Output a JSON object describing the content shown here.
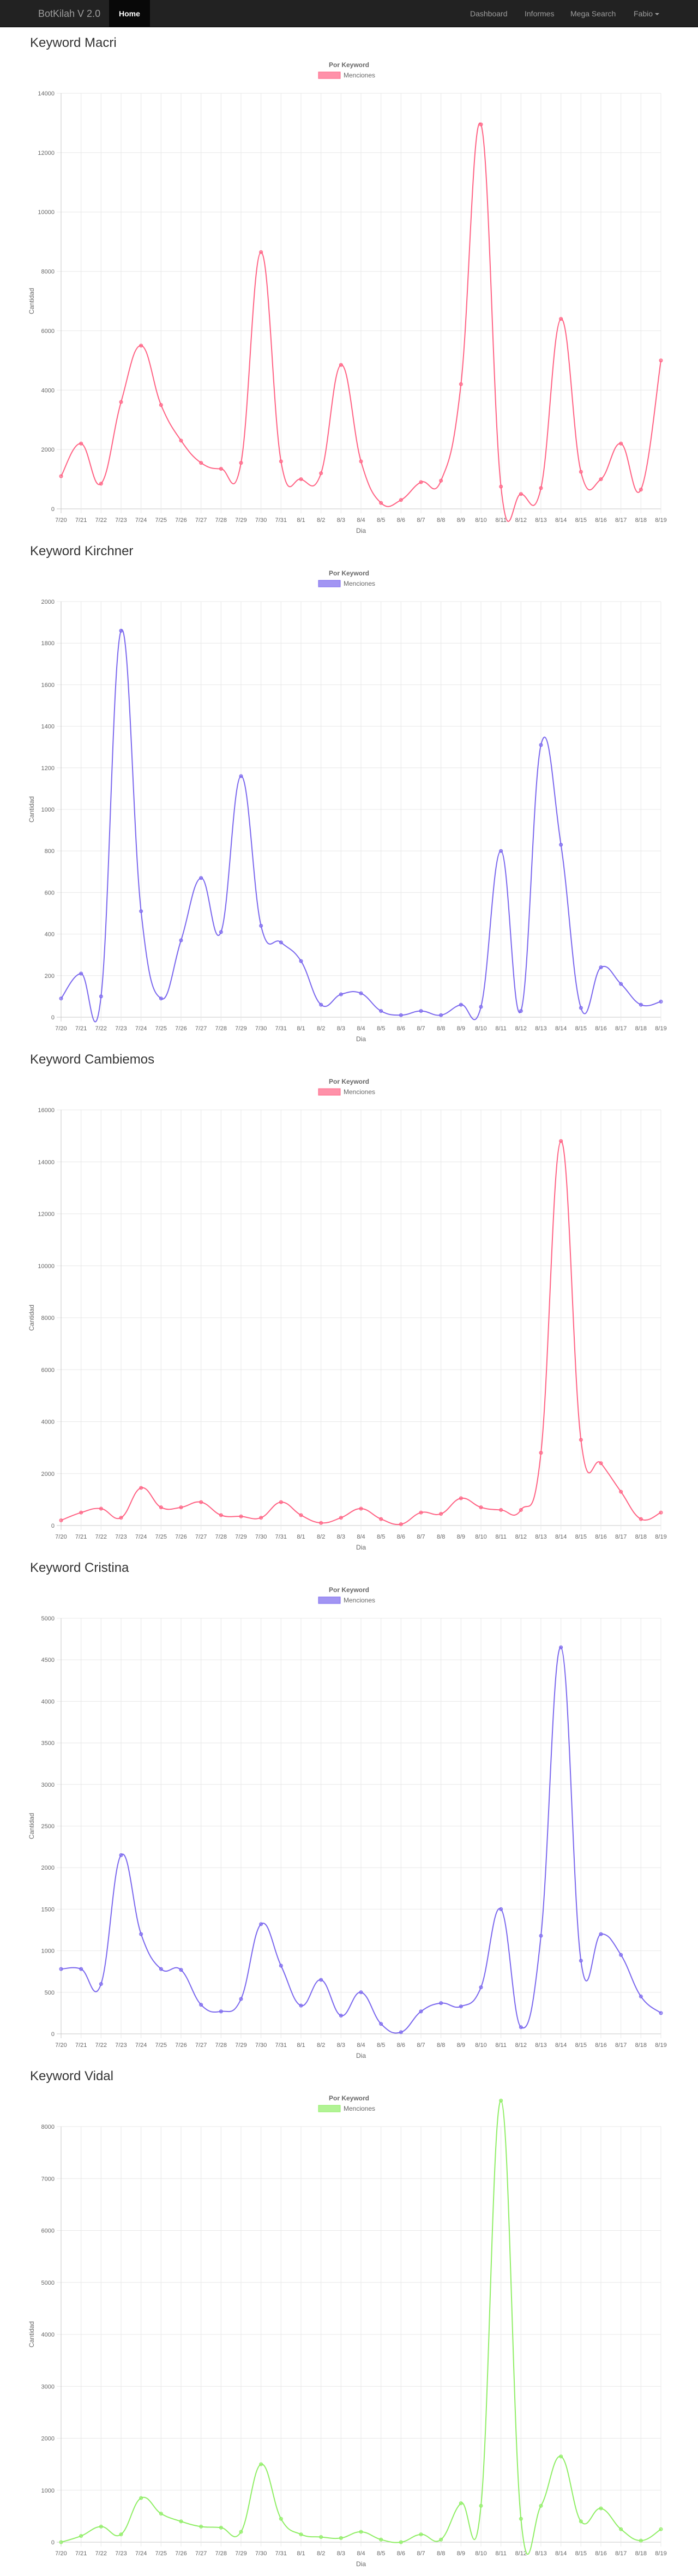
{
  "navbar": {
    "brand": "BotKilah V 2.0",
    "home": "Home",
    "links": [
      "Dashboard",
      "Informes",
      "Mega Search"
    ],
    "user": "Fabio"
  },
  "sections": [
    {
      "title": "Keyword Macri"
    },
    {
      "title": "Keyword Kirchner"
    },
    {
      "title": "Keyword Cambiemos"
    },
    {
      "title": "Keyword Cristina"
    },
    {
      "title": "Keyword Vidal"
    }
  ],
  "chart_data": [
    {
      "type": "line",
      "title": "Por Keyword",
      "xlabel": "Dia",
      "ylabel": "Cantidad",
      "ylim": [
        0,
        14000
      ],
      "yticks": [
        0,
        2000,
        4000,
        6000,
        8000,
        10000,
        12000,
        14000
      ],
      "legend_position": "top",
      "categories": [
        "7/20",
        "7/21",
        "7/22",
        "7/23",
        "7/24",
        "7/25",
        "7/26",
        "7/27",
        "7/28",
        "7/29",
        "7/30",
        "7/31",
        "8/1",
        "8/2",
        "8/3",
        "8/4",
        "8/5",
        "8/6",
        "8/7",
        "8/8",
        "8/9",
        "8/10",
        "8/11",
        "8/12",
        "8/13",
        "8/14",
        "8/15",
        "8/16",
        "8/17",
        "8/18",
        "8/19"
      ],
      "series": [
        {
          "name": "Menciones",
          "color": "#ff6384",
          "values": [
            1100,
            2200,
            850,
            3600,
            5500,
            3500,
            2300,
            1550,
            1350,
            1550,
            8650,
            1600,
            1000,
            1200,
            4850,
            1600,
            200,
            300,
            900,
            950,
            4200,
            12950,
            750,
            500,
            700,
            6400,
            1250,
            1000,
            2200,
            650,
            5000
          ]
        }
      ]
    },
    {
      "type": "line",
      "title": "Por Keyword",
      "xlabel": "Dia",
      "ylabel": "Cantidad",
      "ylim": [
        0,
        2000
      ],
      "yticks": [
        0,
        200,
        400,
        600,
        800,
        1000,
        1200,
        1400,
        1600,
        1800,
        2000
      ],
      "legend_position": "top",
      "categories": [
        "7/20",
        "7/21",
        "7/22",
        "7/23",
        "7/24",
        "7/25",
        "7/26",
        "7/27",
        "7/28",
        "7/29",
        "7/30",
        "7/31",
        "8/1",
        "8/2",
        "8/3",
        "8/4",
        "8/5",
        "8/6",
        "8/7",
        "8/8",
        "8/9",
        "8/10",
        "8/11",
        "8/12",
        "8/13",
        "8/14",
        "8/15",
        "8/16",
        "8/17",
        "8/18",
        "8/19"
      ],
      "series": [
        {
          "name": "Menciones",
          "color": "#7b68ee",
          "values": [
            90,
            210,
            100,
            1860,
            510,
            90,
            370,
            670,
            410,
            1160,
            440,
            360,
            270,
            60,
            110,
            115,
            30,
            10,
            30,
            10,
            60,
            50,
            800,
            30,
            1310,
            830,
            45,
            240,
            160,
            60,
            75
          ]
        }
      ]
    },
    {
      "type": "line",
      "title": "Por Keyword",
      "xlabel": "Dia",
      "ylabel": "Cantidad",
      "ylim": [
        0,
        16000
      ],
      "yticks": [
        0,
        2000,
        4000,
        6000,
        8000,
        10000,
        12000,
        14000,
        16000
      ],
      "legend_position": "top",
      "categories": [
        "7/20",
        "7/21",
        "7/22",
        "7/23",
        "7/24",
        "7/25",
        "7/26",
        "7/27",
        "7/28",
        "7/29",
        "7/30",
        "7/31",
        "8/1",
        "8/2",
        "8/3",
        "8/4",
        "8/5",
        "8/6",
        "8/7",
        "8/8",
        "8/9",
        "8/10",
        "8/11",
        "8/12",
        "8/13",
        "8/14",
        "8/15",
        "8/16",
        "8/17",
        "8/18",
        "8/19"
      ],
      "series": [
        {
          "name": "Menciones",
          "color": "#ff6384",
          "values": [
            200,
            500,
            650,
            300,
            1450,
            700,
            700,
            900,
            400,
            350,
            300,
            900,
            400,
            100,
            300,
            650,
            250,
            50,
            500,
            450,
            1050,
            700,
            600,
            600,
            2800,
            14800,
            3300,
            2400,
            1300,
            250,
            500
          ]
        }
      ]
    },
    {
      "type": "line",
      "title": "Por Keyword",
      "xlabel": "Dia",
      "ylabel": "Cantidad",
      "ylim": [
        0,
        5000
      ],
      "yticks": [
        0,
        500,
        1000,
        1500,
        2000,
        2500,
        3000,
        3500,
        4000,
        4500,
        5000
      ],
      "legend_position": "top",
      "categories": [
        "7/20",
        "7/21",
        "7/22",
        "7/23",
        "7/24",
        "7/25",
        "7/26",
        "7/27",
        "7/28",
        "7/29",
        "7/30",
        "7/31",
        "8/1",
        "8/2",
        "8/3",
        "8/4",
        "8/5",
        "8/6",
        "8/7",
        "8/8",
        "8/9",
        "8/10",
        "8/11",
        "8/12",
        "8/13",
        "8/14",
        "8/15",
        "8/16",
        "8/17",
        "8/18",
        "8/19"
      ],
      "series": [
        {
          "name": "Menciones",
          "color": "#7b68ee",
          "values": [
            780,
            780,
            600,
            2150,
            1200,
            780,
            770,
            350,
            270,
            420,
            1320,
            820,
            340,
            650,
            220,
            500,
            120,
            20,
            270,
            370,
            330,
            560,
            1500,
            80,
            1180,
            4650,
            880,
            1200,
            950,
            450,
            250
          ]
        }
      ]
    },
    {
      "type": "line",
      "title": "Por Keyword",
      "xlabel": "Dia",
      "ylabel": "Cantidad",
      "ylim": [
        0,
        8000
      ],
      "yticks": [
        0,
        1000,
        2000,
        3000,
        4000,
        5000,
        6000,
        7000,
        8000
      ],
      "legend_position": "top",
      "categories": [
        "7/20",
        "7/21",
        "7/22",
        "7/23",
        "7/24",
        "7/25",
        "7/26",
        "7/27",
        "7/28",
        "7/29",
        "7/30",
        "7/31",
        "8/1",
        "8/2",
        "8/3",
        "8/4",
        "8/5",
        "8/6",
        "8/7",
        "8/8",
        "8/9",
        "8/10",
        "8/11",
        "8/12",
        "8/13",
        "8/14",
        "8/15",
        "8/16",
        "8/17",
        "8/18",
        "8/19"
      ],
      "series": [
        {
          "name": "Menciones",
          "color": "#90ee66",
          "values": [
            0,
            120,
            300,
            150,
            850,
            550,
            400,
            300,
            280,
            200,
            1500,
            450,
            150,
            100,
            80,
            200,
            50,
            0,
            150,
            50,
            750,
            700,
            8500,
            450,
            700,
            1650,
            400,
            650,
            250,
            30,
            250
          ]
        }
      ]
    }
  ]
}
